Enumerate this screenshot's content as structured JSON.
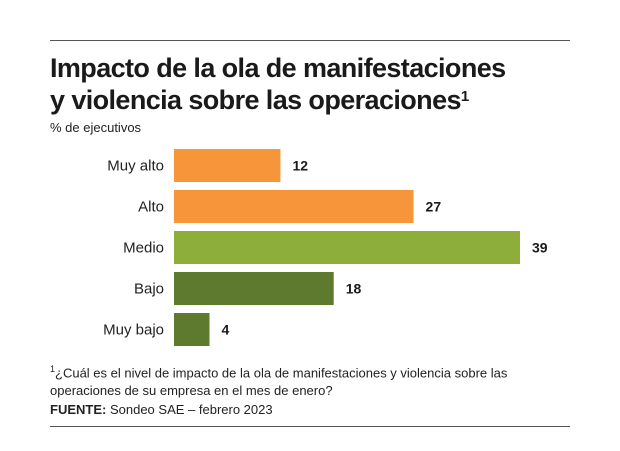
{
  "title_line1": "Impacto de la ola de manifestaciones",
  "title_line2": "y violencia sobre las operaciones",
  "title_mark": "1",
  "subtitle": "% de ejecutivos",
  "footnote_mark": "1",
  "footnote": "¿Cuál es el nivel de impacto de la ola de manifestaciones y violencia sobre las operaciones de su empresa en el mes de enero?",
  "source_label": "FUENTE:",
  "source_text": "Sondeo SAE – febrero 2023",
  "colors": {
    "orange": "#F7953B",
    "light_green": "#8DAE3B",
    "dark_green": "#5E7A2E"
  },
  "chart_data": {
    "type": "bar",
    "orientation": "horizontal",
    "categories": [
      "Muy alto",
      "Alto",
      "Medio",
      "Bajo",
      "Muy bajo"
    ],
    "values": [
      12,
      27,
      39,
      18,
      4
    ],
    "bar_colors": [
      "#F7953B",
      "#F7953B",
      "#8DAE3B",
      "#5E7A2E",
      "#5E7A2E"
    ],
    "xlim": [
      0,
      39
    ],
    "grid": false,
    "legend": "none"
  }
}
